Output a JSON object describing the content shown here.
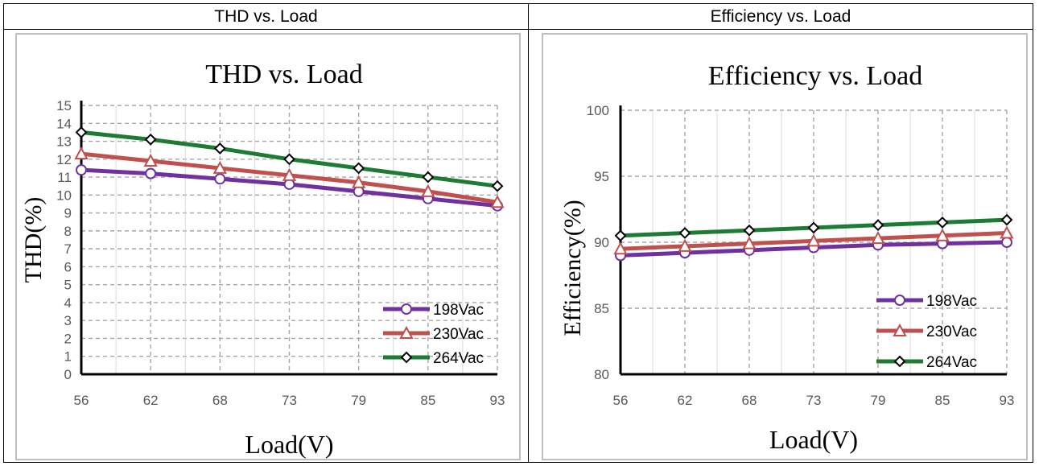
{
  "headers": {
    "left": "THD vs. Load",
    "right": "Efficiency vs. Load"
  },
  "colors": {
    "198Vac": "#7030a0",
    "230Vac": "#c0504d",
    "264Vac": "#1e7b34",
    "grid": "#a6a6a6",
    "axis": "#000000"
  },
  "chart_data": [
    {
      "type": "line",
      "title": "THD vs. Load",
      "xlabel": "Load(V)",
      "ylabel": "THD(%)",
      "categories": [
        "56",
        "62",
        "68",
        "73",
        "79",
        "85",
        "93"
      ],
      "ylim": [
        0,
        15
      ],
      "yticks": [
        0,
        1,
        2,
        3,
        4,
        5,
        6,
        7,
        8,
        9,
        10,
        11,
        12,
        13,
        14,
        15
      ],
      "grid": true,
      "legend_position": "bottom-right",
      "series": [
        {
          "name": "198Vac",
          "marker": "circle",
          "values": [
            11.4,
            11.2,
            10.9,
            10.6,
            10.2,
            9.8,
            9.4
          ]
        },
        {
          "name": "230Vac",
          "marker": "triangle",
          "values": [
            12.3,
            11.9,
            11.5,
            11.1,
            10.7,
            10.2,
            9.6
          ]
        },
        {
          "name": "264Vac",
          "marker": "diamond",
          "values": [
            13.5,
            13.1,
            12.6,
            12.0,
            11.5,
            11.0,
            10.5
          ]
        }
      ]
    },
    {
      "type": "line",
      "title": "Efficiency vs. Load",
      "xlabel": "Load(V)",
      "ylabel": "Efficiency(%)",
      "categories": [
        "56",
        "62",
        "68",
        "73",
        "79",
        "85",
        "93"
      ],
      "ylim": [
        80,
        100
      ],
      "yticks": [
        80,
        85,
        90,
        95,
        100
      ],
      "grid": true,
      "legend_position": "bottom-right",
      "series": [
        {
          "name": "198Vac",
          "marker": "circle",
          "values": [
            89.0,
            89.2,
            89.4,
            89.6,
            89.8,
            89.9,
            90.0
          ]
        },
        {
          "name": "230Vac",
          "marker": "triangle",
          "values": [
            89.5,
            89.7,
            89.9,
            90.1,
            90.3,
            90.5,
            90.7
          ]
        },
        {
          "name": "264Vac",
          "marker": "diamond",
          "values": [
            90.5,
            90.7,
            90.9,
            91.1,
            91.3,
            91.5,
            91.7
          ]
        }
      ]
    }
  ]
}
